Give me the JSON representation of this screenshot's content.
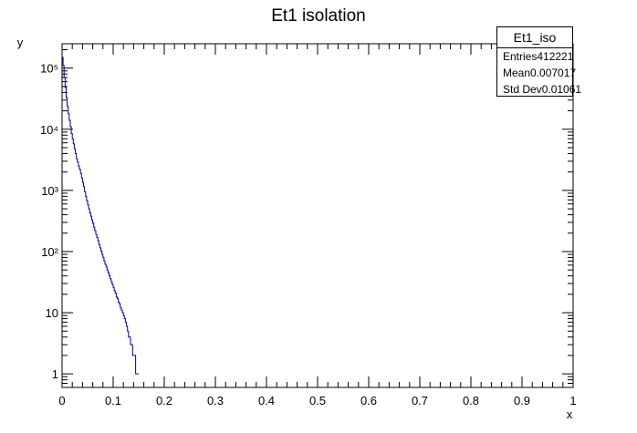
{
  "chart_data": {
    "type": "histogram",
    "title": "Et1 isolation",
    "xlabel": "x",
    "ylabel": "y",
    "xlim": [
      0,
      1
    ],
    "ylim": [
      0.6,
      250000
    ],
    "log_y": true,
    "x_ticks": [
      "0",
      "0.1",
      "0.2",
      "0.3",
      "0.4",
      "0.5",
      "0.6",
      "0.7",
      "0.8",
      "0.9",
      "1"
    ],
    "y_tick_labels": [
      {
        "value": 1,
        "label": "1"
      },
      {
        "value": 10,
        "label": "10"
      },
      {
        "value": 100,
        "label": "10²"
      },
      {
        "value": 1000,
        "label": "10³"
      },
      {
        "value": 10000,
        "label": "10⁴"
      },
      {
        "value": 100000,
        "label": "10⁵"
      }
    ],
    "series": [
      {
        "color": "#00008b",
        "points": [
          [
            0.0,
            150000
          ],
          [
            0.002,
            110000
          ],
          [
            0.004,
            70000
          ],
          [
            0.006,
            48000
          ],
          [
            0.008,
            33000
          ],
          [
            0.01,
            24000
          ],
          [
            0.012,
            18000
          ],
          [
            0.014,
            14000
          ],
          [
            0.016,
            11000
          ],
          [
            0.018,
            8500
          ],
          [
            0.02,
            7000
          ],
          [
            0.022,
            5800
          ],
          [
            0.024,
            4800
          ],
          [
            0.026,
            4000
          ],
          [
            0.028,
            3300
          ],
          [
            0.03,
            2900
          ],
          [
            0.032,
            2500
          ],
          [
            0.034,
            2200
          ],
          [
            0.036,
            1900
          ],
          [
            0.038,
            1600
          ],
          [
            0.04,
            1350
          ],
          [
            0.042,
            1150
          ],
          [
            0.044,
            950
          ],
          [
            0.046,
            800
          ],
          [
            0.048,
            680
          ],
          [
            0.05,
            580
          ],
          [
            0.052,
            500
          ],
          [
            0.054,
            430
          ],
          [
            0.056,
            380
          ],
          [
            0.058,
            330
          ],
          [
            0.06,
            290
          ],
          [
            0.062,
            250
          ],
          [
            0.064,
            220
          ],
          [
            0.066,
            190
          ],
          [
            0.068,
            170
          ],
          [
            0.07,
            150
          ],
          [
            0.072,
            130
          ],
          [
            0.074,
            115
          ],
          [
            0.076,
            102
          ],
          [
            0.078,
            90
          ],
          [
            0.08,
            80
          ],
          [
            0.082,
            70
          ],
          [
            0.084,
            62
          ],
          [
            0.086,
            56
          ],
          [
            0.088,
            50
          ],
          [
            0.09,
            45
          ],
          [
            0.092,
            40
          ],
          [
            0.094,
            36
          ],
          [
            0.096,
            32
          ],
          [
            0.098,
            29
          ],
          [
            0.1,
            26
          ],
          [
            0.102,
            23
          ],
          [
            0.104,
            21
          ],
          [
            0.106,
            18
          ],
          [
            0.108,
            17
          ],
          [
            0.11,
            15
          ],
          [
            0.112,
            14
          ],
          [
            0.114,
            12
          ],
          [
            0.116,
            11
          ],
          [
            0.118,
            10
          ],
          [
            0.12,
            9
          ],
          [
            0.122,
            8
          ],
          [
            0.124,
            7
          ],
          [
            0.126,
            6
          ],
          [
            0.128,
            5
          ],
          [
            0.13,
            4
          ],
          [
            0.132,
            4
          ],
          [
            0.134,
            3
          ],
          [
            0.136,
            3
          ],
          [
            0.138,
            2
          ],
          [
            0.14,
            2
          ],
          [
            0.142,
            2
          ],
          [
            0.144,
            1
          ],
          [
            0.146,
            1
          ],
          [
            0.148,
            1
          ],
          [
            0.15,
            1
          ]
        ]
      }
    ],
    "stats": {
      "title": "Et1_iso",
      "rows": [
        {
          "label": "Entries",
          "value": "412221"
        },
        {
          "label": "Mean",
          "value": "0.007017"
        },
        {
          "label": "Std Dev",
          "value": "0.01061"
        }
      ]
    },
    "grid": false,
    "legend": "top-right"
  }
}
